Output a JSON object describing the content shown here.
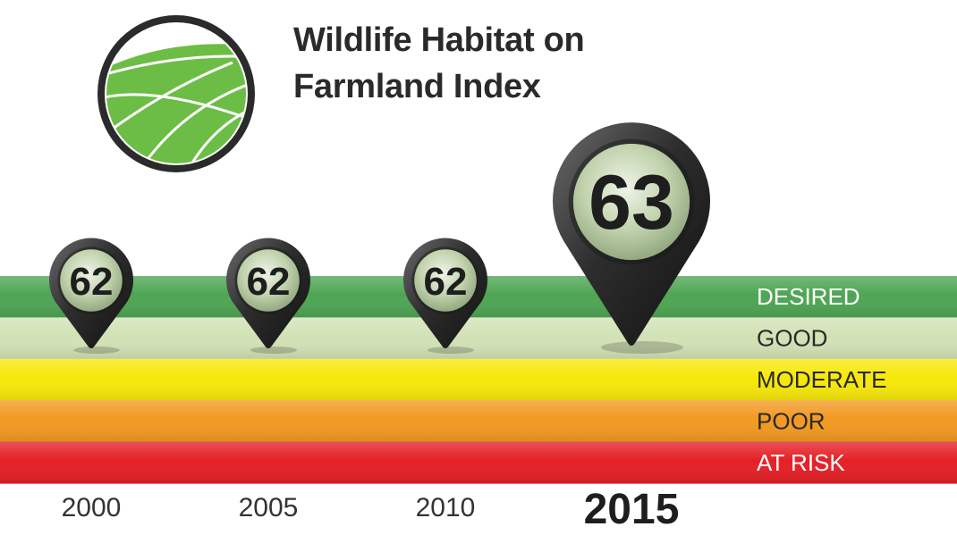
{
  "title_lines": [
    "Wildlife Habitat on",
    "Farmland Index"
  ],
  "logo": {
    "icon": "farm-field-icon",
    "green": "#6cbd45",
    "ring": "#2b2b2b"
  },
  "chart_data": {
    "type": "scatter",
    "title": "Wildlife Habitat on Farmland Index",
    "xlabel": "",
    "ylabel": "",
    "categories": [
      "2000",
      "2005",
      "2010",
      "2015"
    ],
    "values": [
      62,
      62,
      62,
      63
    ],
    "bands": [
      {
        "label": "DESIRED",
        "color": "#4ea554"
      },
      {
        "label": "GOOD",
        "color": "#d2e2b6"
      },
      {
        "label": "MODERATE",
        "color": "#f7e80a"
      },
      {
        "label": "POOR",
        "color": "#f29922"
      },
      {
        "label": "AT RISK",
        "color": "#e52027"
      }
    ],
    "band_label_colors": [
      "#ffffff",
      "#2a2a2a",
      "#2a2a2a",
      "#2a2a2a",
      "#ffffff"
    ],
    "highlight_category": "2015",
    "marker_colors": {
      "pin": "#2d2d2d",
      "face": "#c2d3ae",
      "text": "#1e1e1e"
    }
  }
}
